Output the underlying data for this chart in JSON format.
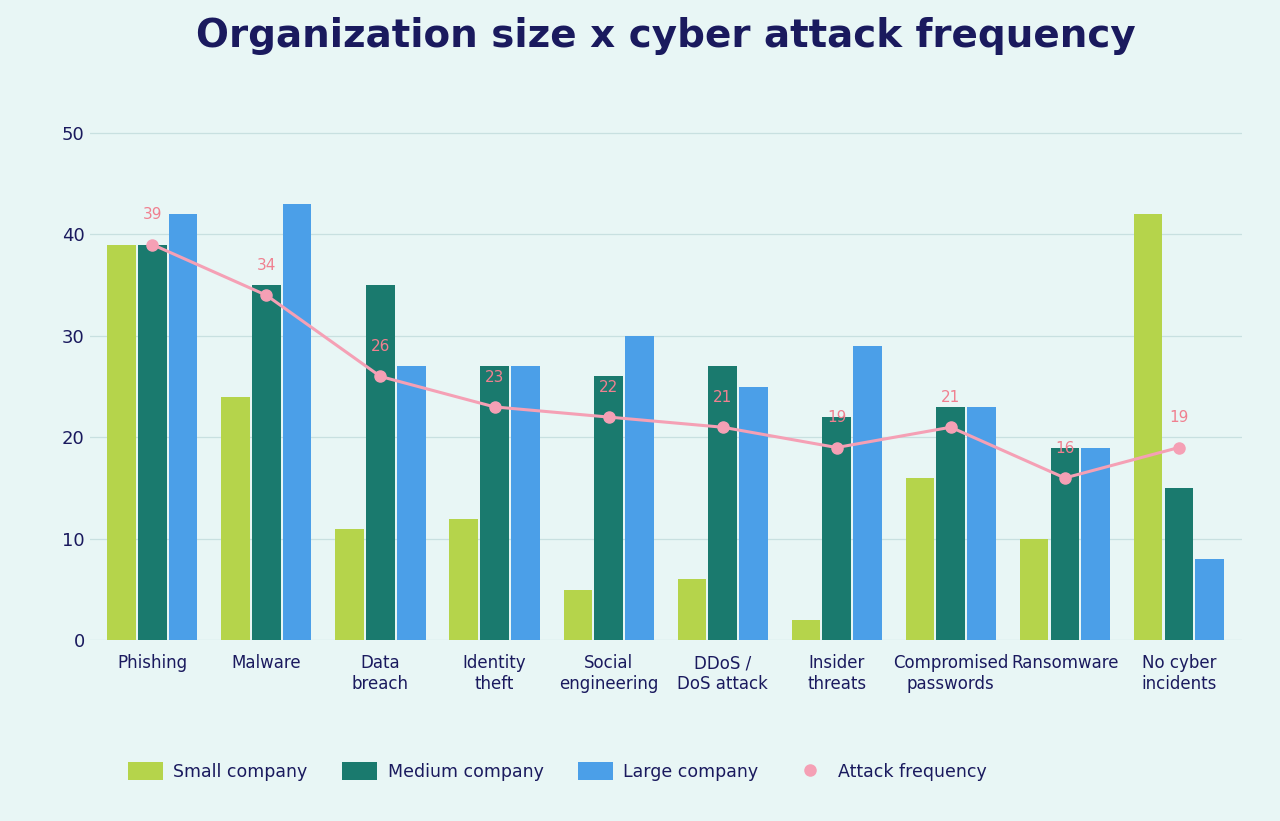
{
  "title": "Organization size x cyber attack frequency",
  "categories": [
    "Phishing",
    "Malware",
    "Data\nbreach",
    "Identity\ntheft",
    "Social\nengineering",
    "DDoS /\nDoS attack",
    "Insider\nthreats",
    "Compromised\npasswords",
    "Ransomware",
    "No cyber\nincidents"
  ],
  "small_company": [
    39,
    24,
    11,
    12,
    5,
    6,
    2,
    16,
    10,
    42
  ],
  "medium_company": [
    39,
    35,
    35,
    27,
    26,
    27,
    22,
    23,
    19,
    15
  ],
  "large_company": [
    42,
    43,
    27,
    27,
    30,
    25,
    29,
    23,
    19,
    8
  ],
  "attack_frequency": [
    39,
    34,
    26,
    23,
    22,
    21,
    19,
    21,
    16,
    19
  ],
  "attack_freq_labels": [
    39,
    34,
    26,
    23,
    22,
    21,
    19,
    21,
    16,
    19
  ],
  "color_small": "#b5d44b",
  "color_medium": "#1a7a6e",
  "color_large": "#4b9fe8",
  "color_line": "#f5a0b5",
  "color_dot": "#f5a0b5",
  "color_label": "#f08090",
  "background_color": "#e8f6f5",
  "text_color": "#1a1a5e",
  "ylim": [
    0,
    55
  ],
  "yticks": [
    0,
    10,
    20,
    30,
    40,
    50
  ],
  "title_fontsize": 28,
  "tick_fontsize": 13,
  "legend_labels": [
    "Small company",
    "Medium company",
    "Large company",
    "Attack frequency"
  ]
}
